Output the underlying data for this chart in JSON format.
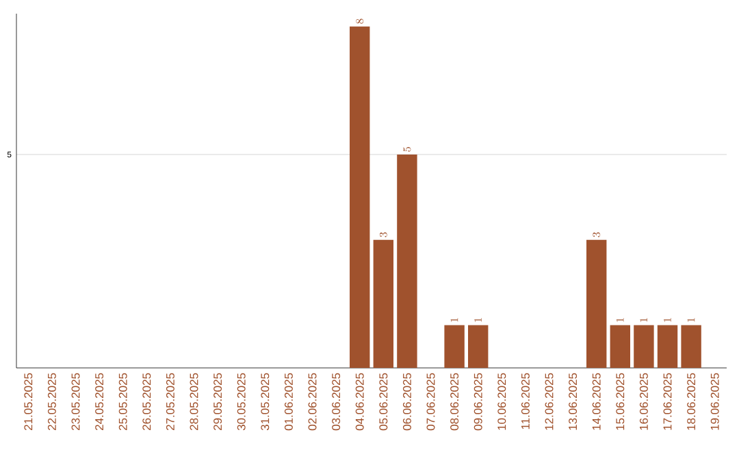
{
  "chart_data": {
    "type": "bar",
    "categories": [
      "21.05.2025",
      "22.05.2025",
      "23.05.2025",
      "24.05.2025",
      "25.05.2025",
      "26.05.2025",
      "27.05.2025",
      "28.05.2025",
      "29.05.2025",
      "30.05.2025",
      "31.05.2025",
      "01.06.2025",
      "02.06.2025",
      "03.06.2025",
      "04.06.2025",
      "05.06.2025",
      "06.06.2025",
      "07.06.2025",
      "08.06.2025",
      "09.06.2025",
      "10.06.2025",
      "11.06.2025",
      "12.06.2025",
      "13.06.2025",
      "14.06.2025",
      "15.06.2025",
      "16.06.2025",
      "17.06.2025",
      "18.06.2025",
      "19.06.2025"
    ],
    "values": [
      null,
      null,
      null,
      null,
      null,
      null,
      null,
      null,
      null,
      null,
      null,
      null,
      null,
      null,
      8,
      3,
      5,
      null,
      1,
      1,
      null,
      null,
      null,
      null,
      3,
      1,
      1,
      1,
      1,
      null
    ],
    "color": "#a0522d",
    "ylim": [
      0,
      8.3
    ],
    "yticks": [
      5
    ],
    "grid": "y",
    "data_labels": true
  }
}
